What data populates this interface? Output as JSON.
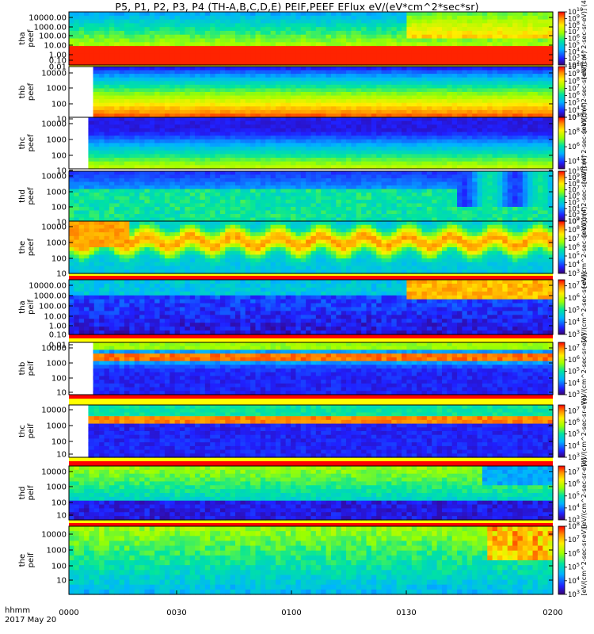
{
  "title": "P5, P1, P2, P3, P4 (TH-A,B,C,D,E) PEIF,PEEF EFlux eV/(eV*cm^2*sec*sr)",
  "footer": {
    "row1": "hhmm",
    "row2": "2017 May 20"
  },
  "colors": {
    "band_red": "#ff0000",
    "band_yellow": "#ffff00"
  },
  "chart_data": {
    "type": "heatmap",
    "x_ticks": [
      "0000",
      "0030",
      "0100",
      "0130",
      "0200"
    ],
    "panels": [
      {
        "id": "tha-peef",
        "ylabel": [
          "tha",
          "peef"
        ],
        "y_ticks": [
          "10000.00",
          "1000.00",
          "100.00",
          "10.00",
          "1.00",
          "0.10",
          "0.01"
        ],
        "cbar_exponents": [
          "10",
          "9",
          "8",
          "7",
          "6",
          "5",
          "4",
          "3",
          "2"
        ],
        "cbar_unit": "[eV/(cm^2-sec-sr-eV)] (4)",
        "cbar_range": [
          2,
          10
        ],
        "colormap": "rainbow",
        "data_gap_end": 0.0
      },
      {
        "id": "thb-peef",
        "ylabel": [
          "thb",
          "peef"
        ],
        "y_ticks": [
          "10000",
          "1000",
          "100",
          "10"
        ],
        "cbar_exponents": [
          "10",
          "9",
          "8",
          "7",
          "6",
          "5",
          "4",
          "3"
        ],
        "cbar_unit": "[eV/(cm^2-sec-sr-eV)] (4)",
        "cbar_range": [
          3,
          10
        ],
        "colormap": "rainbow",
        "data_gap_end": 0.05
      },
      {
        "id": "thc-peef",
        "ylabel": [
          "thc",
          "peef"
        ],
        "y_ticks": [
          "10000",
          "1000",
          "100",
          "10"
        ],
        "cbar_exponents": [
          "10",
          "8",
          "6",
          "4"
        ],
        "cbar_unit": "[eV/(cm^2-sec-sr-eV)] (4)",
        "cbar_range": [
          3,
          10
        ],
        "colormap": "rainbow",
        "data_gap_end": 0.04
      },
      {
        "id": "thd-peef",
        "ylabel": [
          "thd",
          "peef"
        ],
        "y_ticks": [
          "10000",
          "1000",
          "100",
          "10"
        ],
        "cbar_exponents": [
          "10",
          "9",
          "8",
          "7",
          "6",
          "5",
          "4",
          "3",
          "2"
        ],
        "cbar_unit": "[eV/(cm^2-sec-sr-eV)] (4)",
        "cbar_range": [
          2,
          10
        ],
        "colormap": "rainbow",
        "data_gap_end": 0.0
      },
      {
        "id": "the-peef",
        "ylabel": [
          "the",
          "peef"
        ],
        "y_ticks": [
          "10000",
          "1000",
          "100",
          "10"
        ],
        "cbar_exponents": [
          "9",
          "8",
          "7",
          "6",
          "5",
          "4",
          "3"
        ],
        "cbar_unit": "[eV/(cm^2-sec-sr-eV)] (4)",
        "cbar_range": [
          3,
          9
        ],
        "colormap": "rainbow",
        "data_gap_end": 0.0
      },
      {
        "id": "tha-peif",
        "ylabel": [
          "tha",
          "peif"
        ],
        "y_ticks": [
          "10000.00",
          "1000.00",
          "100.00",
          "10.00",
          "1.00",
          "0.10",
          "0.01"
        ],
        "cbar_exponents": [
          "7",
          "6",
          "5",
          "4",
          "3"
        ],
        "cbar_unit": "[eV/(cm^2-sec-sr-eV)]",
        "cbar_range": [
          3,
          7.5
        ],
        "colormap": "rainbow",
        "data_gap_end": 0.0
      },
      {
        "id": "thb-peif",
        "ylabel": [
          "thb",
          "peif"
        ],
        "y_ticks": [
          "10000",
          "1000",
          "100",
          "10"
        ],
        "cbar_exponents": [
          "7",
          "6",
          "5",
          "4",
          "3"
        ],
        "cbar_unit": "[eV/(cm^2-sec-sr-eV)]",
        "cbar_range": [
          3,
          7.5
        ],
        "colormap": "rainbow",
        "data_gap_end": 0.05
      },
      {
        "id": "thc-peif",
        "ylabel": [
          "thc",
          "peif"
        ],
        "y_ticks": [
          "10000",
          "1000",
          "100",
          "10"
        ],
        "cbar_exponents": [
          "7",
          "6",
          "5",
          "4",
          "3"
        ],
        "cbar_unit": "[eV/(cm^2-sec-sr-eV)]",
        "cbar_range": [
          3,
          7.5
        ],
        "colormap": "rainbow",
        "data_gap_end": 0.04
      },
      {
        "id": "thd-peif",
        "ylabel": [
          "thd",
          "peif"
        ],
        "y_ticks": [
          "10000",
          "1000",
          "100",
          "10"
        ],
        "cbar_exponents": [
          "7",
          "6",
          "5",
          "4",
          "3"
        ],
        "cbar_unit": "[eV/(cm^2-sec-sr-eV)]",
        "cbar_range": [
          3,
          7.5
        ],
        "colormap": "rainbow",
        "data_gap_end": 0.0
      },
      {
        "id": "the-peif",
        "ylabel": [
          "the",
          "peif"
        ],
        "y_ticks": [
          "10000",
          "1000",
          "100",
          "10"
        ],
        "cbar_exponents": [
          "8",
          "7",
          "6",
          "5",
          "4",
          "3"
        ],
        "cbar_unit": "[eV/(cm^2-sec-sr-eV)]",
        "cbar_range": [
          3,
          8
        ],
        "colormap": "rainbow",
        "data_gap_end": 0.0
      }
    ]
  }
}
